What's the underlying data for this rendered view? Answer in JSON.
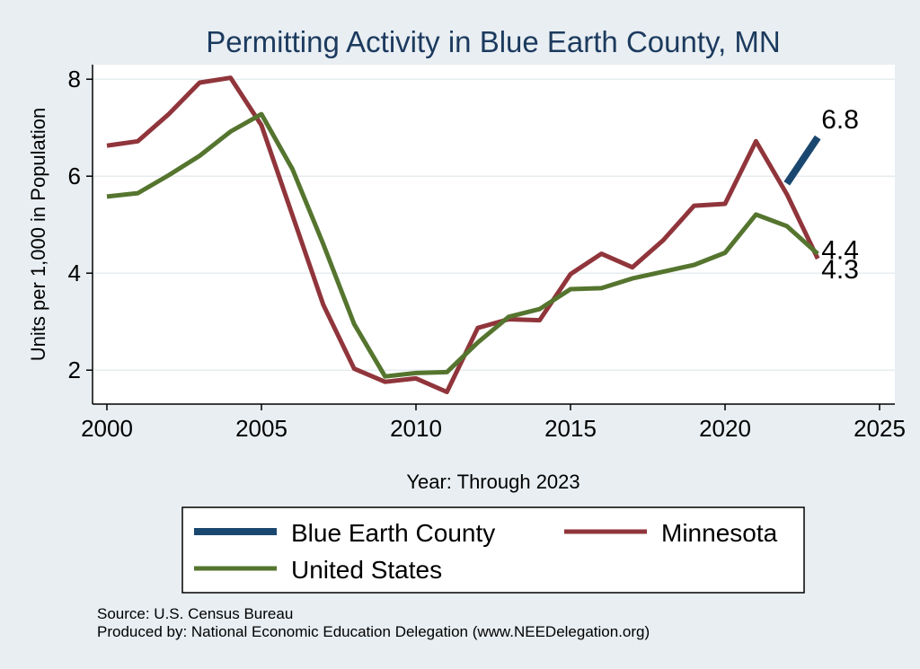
{
  "chart_data": {
    "type": "line",
    "title": "Permitting Activity in Blue Earth County, MN",
    "xlabel": "Year: Through 2023",
    "ylabel": "Units per 1,000 in Population",
    "xlim": [
      2000,
      2025
    ],
    "ylim": [
      1.3,
      8.3
    ],
    "xticks": [
      2000,
      2005,
      2010,
      2015,
      2020,
      2025
    ],
    "yticks": [
      2,
      4,
      6,
      8
    ],
    "grid": true,
    "legend_position": "bottom",
    "series": [
      {
        "name": "Blue Earth County",
        "color": "#1a476f",
        "points": [
          [
            2022,
            5.85
          ],
          [
            2023,
            6.8
          ]
        ],
        "end_label": "6.8"
      },
      {
        "name": "Minnesota",
        "color": "#90353b",
        "points": [
          [
            2000,
            6.63
          ],
          [
            2001,
            6.72
          ],
          [
            2002,
            7.28
          ],
          [
            2003,
            7.93
          ],
          [
            2004,
            8.03
          ],
          [
            2005,
            7.05
          ],
          [
            2006,
            5.2
          ],
          [
            2007,
            3.35
          ],
          [
            2008,
            2.03
          ],
          [
            2009,
            1.76
          ],
          [
            2010,
            1.83
          ],
          [
            2011,
            1.55
          ],
          [
            2012,
            2.87
          ],
          [
            2013,
            3.05
          ],
          [
            2014,
            3.03
          ],
          [
            2015,
            3.98
          ],
          [
            2016,
            4.4
          ],
          [
            2017,
            4.12
          ],
          [
            2018,
            4.68
          ],
          [
            2019,
            5.39
          ],
          [
            2020,
            5.43
          ],
          [
            2021,
            6.72
          ],
          [
            2022,
            5.63
          ],
          [
            2023,
            4.3
          ]
        ],
        "end_label": "4.3"
      },
      {
        "name": "United States",
        "color": "#55752f",
        "points": [
          [
            2000,
            5.58
          ],
          [
            2001,
            5.65
          ],
          [
            2002,
            6.02
          ],
          [
            2003,
            6.42
          ],
          [
            2004,
            6.92
          ],
          [
            2005,
            7.28
          ],
          [
            2006,
            6.15
          ],
          [
            2007,
            4.6
          ],
          [
            2008,
            2.95
          ],
          [
            2009,
            1.87
          ],
          [
            2010,
            1.94
          ],
          [
            2011,
            1.96
          ],
          [
            2012,
            2.57
          ],
          [
            2013,
            3.1
          ],
          [
            2014,
            3.26
          ],
          [
            2015,
            3.67
          ],
          [
            2016,
            3.69
          ],
          [
            2017,
            3.89
          ],
          [
            2018,
            4.03
          ],
          [
            2019,
            4.17
          ],
          [
            2020,
            4.42
          ],
          [
            2021,
            5.21
          ],
          [
            2022,
            4.97
          ],
          [
            2023,
            4.4
          ]
        ],
        "end_label": "4.4"
      }
    ]
  },
  "legend": {
    "items": [
      "Blue Earth County",
      "Minnesota",
      "United States"
    ]
  },
  "footer": {
    "source": "Source: U.S. Census Bureau",
    "produced_by": "Produced by: National Economic Education Delegation (www.NEEDelegation.org)"
  }
}
